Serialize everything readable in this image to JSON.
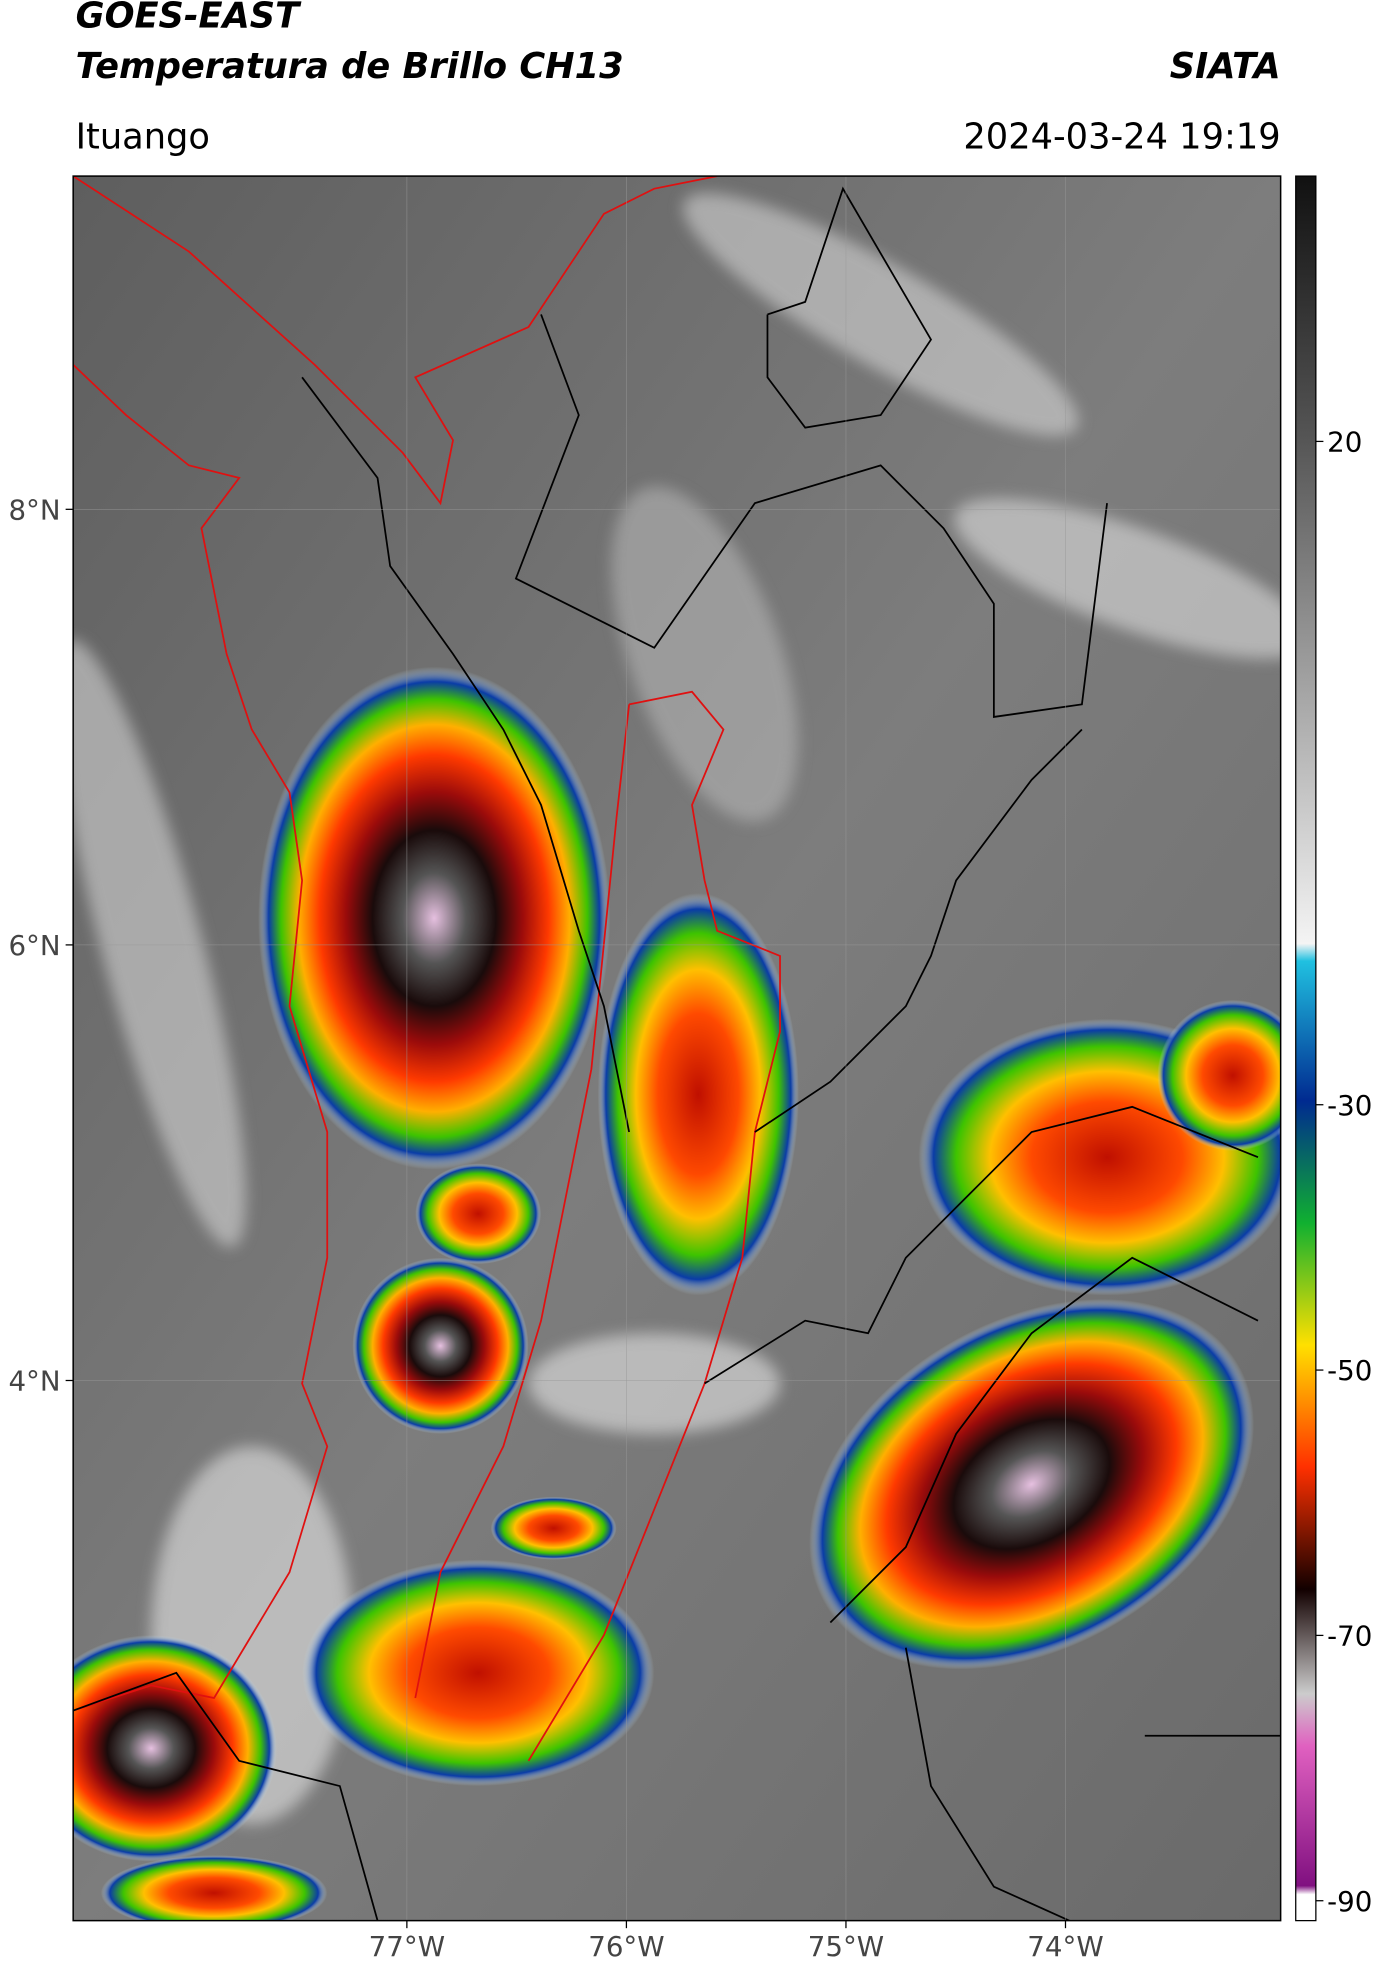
{
  "header": {
    "title": "GOES-EAST",
    "subtitle": "Temperatura de Brillo CH13",
    "brand": "SIATA",
    "location": "Ituango",
    "timestamp": "2024-03-24 19:19"
  },
  "map": {
    "lonlim": [
      -78.52,
      -73.02
    ],
    "latlim": [
      1.52,
      9.53
    ],
    "lon_ticks": [
      {
        "value": -77,
        "label": "77°W"
      },
      {
        "value": -76,
        "label": "76°W"
      },
      {
        "value": -75,
        "label": "75°W"
      },
      {
        "value": -74,
        "label": "74°W"
      }
    ],
    "lat_ticks": [
      {
        "value": 8,
        "label": "8°N"
      },
      {
        "value": 6,
        "label": "6°N"
      },
      {
        "value": 4,
        "label": "4°N"
      }
    ],
    "grid": true
  },
  "colorbar": {
    "lim": [
      -91.5,
      40
    ],
    "ticks": [
      20,
      -30,
      -50,
      -70,
      -90
    ]
  }
}
